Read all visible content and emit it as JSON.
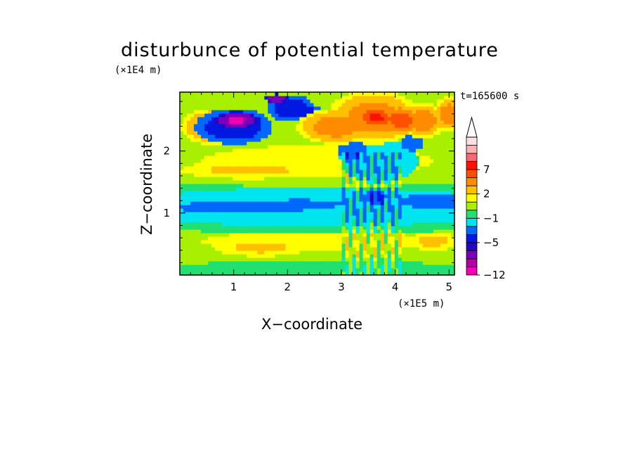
{
  "chart_data": {
    "type": "heatmap",
    "title": "disturbunce of potential temperature",
    "xlabel": "X−coordinate",
    "ylabel": "Z−coordinate",
    "x_multiplier": "(×1E5 m)",
    "y_multiplier": "(×1E4 m)",
    "timestamp": "t=165600 s",
    "xlim": [
      0,
      5.1
    ],
    "ylim": [
      0,
      2.95
    ],
    "x_ticks": [
      {
        "value": 1,
        "label": "1"
      },
      {
        "value": 2,
        "label": "2"
      },
      {
        "value": 3,
        "label": "3"
      },
      {
        "value": 4,
        "label": "4"
      },
      {
        "value": 5,
        "label": "5"
      }
    ],
    "y_ticks": [
      {
        "value": 1,
        "label": "1"
      },
      {
        "value": 2,
        "label": "2"
      }
    ],
    "colorbar": {
      "levels": [
        {
          "value": -12,
          "color": "#f000b0"
        },
        {
          "value": -10,
          "color": "#b000a8"
        },
        {
          "value": -8,
          "color": "#7a00b8"
        },
        {
          "value": -6,
          "color": "#2a00c8"
        },
        {
          "value": -5,
          "color": "#0018e0"
        },
        {
          "value": -4,
          "color": "#0068ff"
        },
        {
          "value": -2,
          "color": "#00e4f0"
        },
        {
          "value": -1,
          "color": "#20e070"
        },
        {
          "value": 0,
          "color": "#a8f000"
        },
        {
          "value": 1,
          "color": "#ffff00"
        },
        {
          "value": 2,
          "color": "#ffc000"
        },
        {
          "value": 3,
          "color": "#ff8c00"
        },
        {
          "value": 5,
          "color": "#ff5000"
        },
        {
          "value": 7,
          "color": "#ff1000"
        },
        {
          "value": 9,
          "color": "#ff6870"
        },
        {
          "value": 11,
          "color": "#ffb0b0"
        },
        {
          "value": 13,
          "color": "#ffe0e0"
        }
      ],
      "labels": [
        {
          "value": 7,
          "text": "7"
        },
        {
          "value": 2,
          "text": "2"
        },
        {
          "value": -1,
          "text": "−1"
        },
        {
          "value": -5,
          "text": "−5"
        },
        {
          "value": -12,
          "text": "−12"
        }
      ],
      "extend_top": true
    },
    "background_value": 0,
    "features": [
      {
        "x": 2.55,
        "z": 0.55,
        "wx": 2.6,
        "wz": 0.2,
        "value": 1
      },
      {
        "x": 1.5,
        "z": 0.45,
        "wx": 0.6,
        "wz": 0.1,
        "value": 2
      },
      {
        "x": 4.7,
        "z": 0.55,
        "wx": 0.35,
        "wz": 0.1,
        "value": 2
      },
      {
        "x": 2.5,
        "z": 0.1,
        "wx": 2.6,
        "wz": 0.08,
        "value": -0.5
      },
      {
        "x": 2.55,
        "z": 0.78,
        "wx": 2.6,
        "wz": 0.06,
        "value": -0.5
      },
      {
        "x": 2.55,
        "z": 1.1,
        "wx": 2.6,
        "wz": 0.22,
        "value": -2
      },
      {
        "x": 1.2,
        "z": 1.1,
        "wx": 0.9,
        "wz": 0.07,
        "value": -4
      },
      {
        "x": 2.2,
        "z": 1.15,
        "wx": 0.6,
        "wz": 0.05,
        "value": -4
      },
      {
        "x": 4.7,
        "z": 1.2,
        "wx": 0.45,
        "wz": 0.08,
        "value": -4
      },
      {
        "x": 3.65,
        "z": 1.25,
        "wx": 0.18,
        "wz": 0.1,
        "value": -4
      },
      {
        "x": 2.55,
        "z": 1.43,
        "wx": 2.6,
        "wz": 0.05,
        "value": -0.5
      },
      {
        "x": 2.55,
        "z": 1.85,
        "wx": 2.6,
        "wz": 0.3,
        "value": 1
      },
      {
        "x": 1.3,
        "z": 1.7,
        "wx": 0.9,
        "wz": 0.1,
        "value": 2
      },
      {
        "x": 3.2,
        "z": 2.08,
        "wx": 0.2,
        "wz": 0.2,
        "value": -4
      },
      {
        "x": 3.7,
        "z": 1.85,
        "wx": 0.5,
        "wz": 0.25,
        "value": -2
      },
      {
        "x": 4.3,
        "z": 2.15,
        "wx": 0.15,
        "wz": 0.1,
        "value": -4
      },
      {
        "x": 0.6,
        "z": 2.4,
        "wx": 0.4,
        "wz": 0.2,
        "value": 3
      },
      {
        "x": 1.0,
        "z": 2.4,
        "wx": 0.5,
        "wz": 0.2,
        "value": -5
      },
      {
        "x": 1.05,
        "z": 2.5,
        "wx": 0.3,
        "wz": 0.1,
        "value": -8
      },
      {
        "x": 1.05,
        "z": 2.5,
        "wx": 0.15,
        "wz": 0.05,
        "value": -12
      },
      {
        "x": 2.05,
        "z": 2.7,
        "wx": 0.3,
        "wz": 0.15,
        "value": -5
      },
      {
        "x": 2.4,
        "z": 2.6,
        "wx": 0.2,
        "wz": 0.1,
        "value": -5
      },
      {
        "x": 1.8,
        "z": 2.85,
        "wx": 0.15,
        "wz": 0.05,
        "value": -8
      },
      {
        "x": 2.9,
        "z": 2.4,
        "wx": 0.5,
        "wz": 0.2,
        "value": 3
      },
      {
        "x": 3.6,
        "z": 2.55,
        "wx": 0.6,
        "wz": 0.3,
        "value": 3
      },
      {
        "x": 3.65,
        "z": 2.55,
        "wx": 0.3,
        "wz": 0.15,
        "value": 5
      },
      {
        "x": 3.65,
        "z": 2.55,
        "wx": 0.15,
        "wz": 0.08,
        "value": 7
      },
      {
        "x": 4.1,
        "z": 2.5,
        "wx": 0.25,
        "wz": 0.15,
        "value": 5
      },
      {
        "x": 4.5,
        "z": 2.5,
        "wx": 0.3,
        "wz": 0.2,
        "value": 3
      },
      {
        "x": 5.0,
        "z": 2.6,
        "wx": 0.2,
        "wz": 0.2,
        "value": 3
      }
    ]
  }
}
